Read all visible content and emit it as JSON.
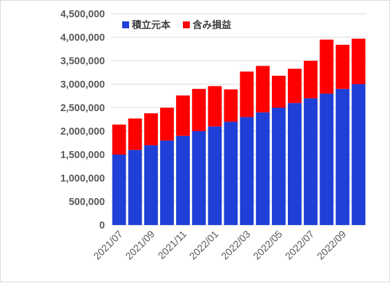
{
  "chart_data": {
    "type": "bar",
    "stacked": true,
    "categories": [
      "2021/07",
      "2021/08",
      "2021/09",
      "2021/10",
      "2021/11",
      "2021/12",
      "2022/01",
      "2022/02",
      "2022/03",
      "2022/04",
      "2022/05",
      "2022/06",
      "2022/07",
      "2022/08",
      "2022/09",
      "2022/10"
    ],
    "x_tick_labels": [
      "2021/07",
      "2021/09",
      "2021/11",
      "2022/01",
      "2022/03",
      "2022/05",
      "2022/07",
      "2022/09"
    ],
    "series": [
      {
        "name": "積立元本",
        "color": "#1f3fd6",
        "values": [
          1500000,
          1600000,
          1700000,
          1800000,
          1900000,
          2000000,
          2100000,
          2200000,
          2300000,
          2400000,
          2500000,
          2600000,
          2700000,
          2800000,
          2900000,
          3000000
        ]
      },
      {
        "name": "含み損益",
        "color": "#ff0000",
        "values": [
          640000,
          670000,
          680000,
          700000,
          860000,
          900000,
          860000,
          690000,
          970000,
          990000,
          680000,
          730000,
          800000,
          1150000,
          940000,
          970000
        ]
      }
    ],
    "ylim": [
      0,
      4500000
    ],
    "y_ticks": [
      0,
      500000,
      1000000,
      1500000,
      2000000,
      2500000,
      3000000,
      3500000,
      4000000,
      4500000
    ],
    "y_tick_labels": [
      "0",
      "500,000",
      "1,000,000",
      "1,500,000",
      "2,000,000",
      "2,500,000",
      "3,000,000",
      "3,500,000",
      "4,000,000",
      "4,500,000"
    ],
    "grid": true,
    "legend_position": "top"
  }
}
